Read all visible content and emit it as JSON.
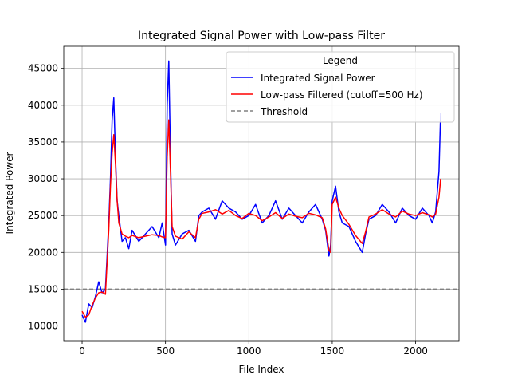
{
  "chart_data": {
    "type": "line",
    "title": "Integrated Signal Power with Low-pass Filter",
    "xlabel": "File Index",
    "ylabel": "Integrated Power",
    "xlim": [
      -110,
      2260
    ],
    "ylim": [
      8000,
      48000
    ],
    "xticks": [
      0,
      500,
      1000,
      1500,
      2000
    ],
    "yticks": [
      10000,
      15000,
      20000,
      25000,
      30000,
      35000,
      40000,
      45000
    ],
    "grid": true,
    "legend": {
      "title": "Legend",
      "placement": "top-right",
      "entries": [
        "Integrated Signal Power",
        "Low-pass Filtered (cutoff=500 Hz)",
        "Threshold"
      ]
    },
    "series": [
      {
        "name": "Integrated Signal Power",
        "color": "#0000ff",
        "style": "solid",
        "x": [
          0,
          20,
          40,
          60,
          80,
          100,
          120,
          140,
          160,
          170,
          180,
          190,
          200,
          210,
          220,
          240,
          260,
          280,
          300,
          340,
          380,
          420,
          460,
          480,
          500,
          510,
          520,
          530,
          540,
          560,
          600,
          640,
          680,
          700,
          720,
          760,
          800,
          840,
          880,
          920,
          960,
          1000,
          1040,
          1080,
          1120,
          1160,
          1200,
          1240,
          1280,
          1320,
          1360,
          1400,
          1440,
          1460,
          1480,
          1490,
          1500,
          1520,
          1540,
          1560,
          1600,
          1640,
          1680,
          1700,
          1720,
          1760,
          1800,
          1840,
          1880,
          1920,
          1960,
          2000,
          2040,
          2080,
          2100,
          2120,
          2140,
          2150
        ],
        "y": [
          11500,
          10500,
          13000,
          12500,
          14000,
          16000,
          14500,
          15000,
          24000,
          30000,
          38000,
          41000,
          33000,
          27000,
          25000,
          21500,
          22000,
          20500,
          23000,
          21500,
          22500,
          23500,
          22000,
          24000,
          21000,
          40000,
          46000,
          33000,
          22500,
          21000,
          22500,
          23000,
          21500,
          25000,
          25500,
          26000,
          24500,
          27000,
          26000,
          25500,
          24500,
          25000,
          26500,
          24000,
          25000,
          27000,
          24500,
          26000,
          25000,
          24000,
          25500,
          26500,
          24500,
          23000,
          19500,
          21000,
          27000,
          29000,
          25500,
          24000,
          23500,
          21500,
          20000,
          22500,
          24500,
          25000,
          26500,
          25500,
          24000,
          26000,
          25000,
          24500,
          26000,
          25000,
          24000,
          25500,
          31000,
          39000
        ]
      },
      {
        "name": "Low-pass Filtered (cutoff=500 Hz)",
        "color": "#ff0000",
        "style": "solid",
        "x": [
          0,
          20,
          40,
          60,
          80,
          100,
          120,
          140,
          160,
          170,
          180,
          190,
          200,
          210,
          220,
          240,
          260,
          280,
          300,
          340,
          380,
          420,
          460,
          480,
          500,
          510,
          520,
          530,
          540,
          560,
          600,
          640,
          680,
          700,
          720,
          760,
          800,
          840,
          880,
          920,
          960,
          1000,
          1040,
          1080,
          1120,
          1160,
          1200,
          1240,
          1280,
          1320,
          1360,
          1400,
          1440,
          1460,
          1480,
          1490,
          1500,
          1520,
          1540,
          1560,
          1600,
          1640,
          1680,
          1700,
          1720,
          1760,
          1800,
          1840,
          1880,
          1920,
          1960,
          2000,
          2040,
          2080,
          2100,
          2120,
          2140,
          2150
        ],
        "y": [
          12000,
          11200,
          11500,
          12800,
          13800,
          14500,
          14600,
          14300,
          23000,
          29000,
          33500,
          36000,
          32000,
          27000,
          24000,
          22500,
          22200,
          22000,
          22300,
          22000,
          22200,
          22400,
          22300,
          22100,
          22000,
          33000,
          38000,
          31000,
          23500,
          22200,
          21800,
          22800,
          22000,
          24500,
          25300,
          25500,
          25800,
          25200,
          25700,
          25000,
          24600,
          25300,
          25000,
          24300,
          24800,
          25400,
          24600,
          25200,
          24900,
          24700,
          25300,
          25100,
          24700,
          23200,
          20300,
          20000,
          26500,
          27500,
          26000,
          25000,
          23800,
          22300,
          21200,
          22800,
          24800,
          25200,
          25800,
          25200,
          24800,
          25600,
          25200,
          25000,
          25400,
          25100,
          24800,
          25200,
          27500,
          30000
        ]
      },
      {
        "name": "Threshold",
        "color": "#808080",
        "style": "dashed",
        "x": [
          -110,
          2260
        ],
        "y": [
          15000,
          15000
        ]
      }
    ]
  }
}
